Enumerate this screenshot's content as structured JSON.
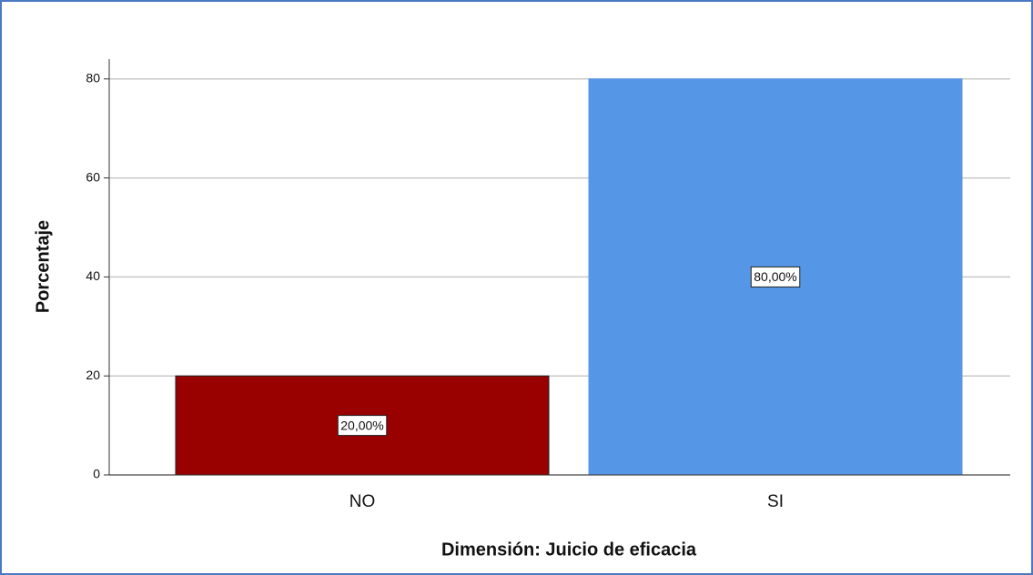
{
  "chart_data": {
    "type": "bar",
    "categories": [
      "NO",
      "SI"
    ],
    "values": [
      20,
      80
    ],
    "value_labels": [
      "20,00%",
      "80,00%"
    ],
    "colors": [
      "#990000",
      "#5596e6"
    ],
    "xlabel": "Dimensión: Juicio de eficacia",
    "ylabel": "Porcentaje",
    "ylim": [
      0,
      84
    ],
    "yticks": [
      0,
      20,
      40,
      60,
      80
    ],
    "grid": true
  }
}
